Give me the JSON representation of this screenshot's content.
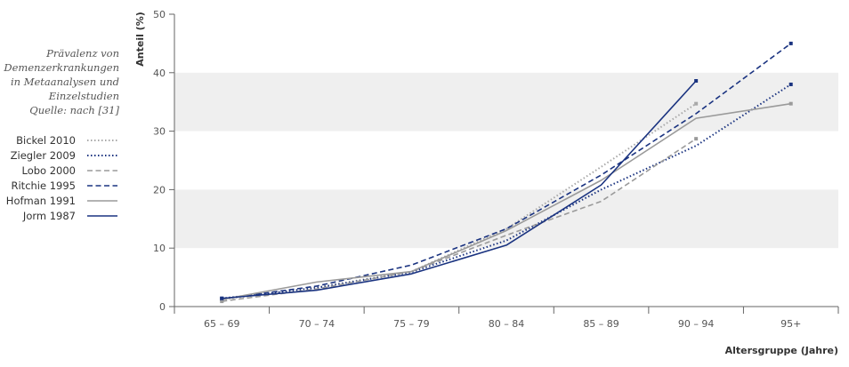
{
  "caption": {
    "lines": [
      "Prävalenz von",
      "Demenzerkrankungen",
      "in Metaanalysen und",
      "Einzelstudien"
    ],
    "source": "Quelle: nach [31]"
  },
  "colors": {
    "band": "#efefef",
    "axis": "#666666",
    "light_gray": "#a8a8a8",
    "mid_gray": "#9a9a9a",
    "navy": "#1a3380"
  },
  "chart_data": {
    "type": "line",
    "xlabel": "Altersgruppe (Jahre)",
    "ylabel": "Anteil (%)",
    "ylim": [
      0,
      50
    ],
    "yticks": [
      0,
      10,
      20,
      30,
      40,
      50
    ],
    "grid": "alternating horizontal bands",
    "legend_position": "left",
    "categories": [
      "65 – 69",
      "70 – 74",
      "75 – 79",
      "80 – 84",
      "85 – 89",
      "90 – 94",
      "95+"
    ],
    "series": [
      {
        "name": "Bickel 2010",
        "style": "dotted",
        "color": "#a8a8a8",
        "values": [
          1.2,
          3.3,
          6.0,
          13.3,
          23.9,
          34.7,
          null
        ]
      },
      {
        "name": "Ziegler 2009",
        "style": "dotted",
        "color": "#1a3380",
        "values": [
          1.4,
          3.2,
          5.9,
          11.3,
          20.0,
          27.5,
          38.0
        ]
      },
      {
        "name": "Lobo 2000",
        "style": "dashed",
        "color": "#9a9a9a",
        "values": [
          0.9,
          3.0,
          6.0,
          12.2,
          18.0,
          28.7,
          null
        ]
      },
      {
        "name": "Ritchie 1995",
        "style": "dashed",
        "color": "#1a3380",
        "values": [
          1.3,
          3.5,
          7.1,
          13.3,
          22.5,
          33.0,
          45.0
        ]
      },
      {
        "name": "Hofman 1991",
        "style": "solid",
        "color": "#9a9a9a",
        "values": [
          1.2,
          4.2,
          6.0,
          13.0,
          21.6,
          32.2,
          34.7
        ]
      },
      {
        "name": "Jorm 1987",
        "style": "solid",
        "color": "#1a3380",
        "values": [
          1.4,
          2.8,
          5.6,
          10.5,
          20.8,
          38.6,
          null
        ]
      }
    ]
  }
}
